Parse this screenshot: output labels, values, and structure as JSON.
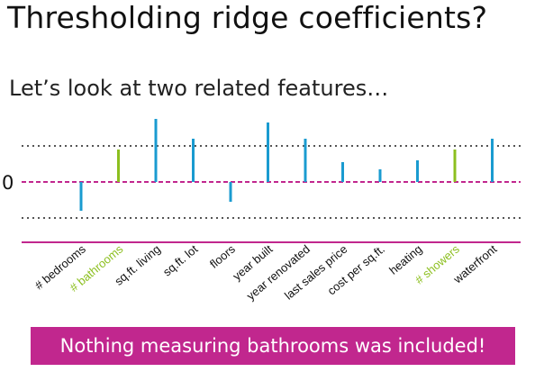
{
  "slide": {
    "title": "Thresholding ridge coefficients?",
    "subtitle": "Let’s look at two related features…",
    "banner": "Nothing measuring bathrooms was included!"
  },
  "colors": {
    "default_bar": "#1a9bd0",
    "highlight_bar": "#8cbf1f",
    "zero_line": "#c1278e",
    "threshold_line": "#555555",
    "default_label": "#111111",
    "highlight_label": "#8cbf1f",
    "banner_bg": "#c1278e"
  },
  "chart_data": {
    "type": "bar",
    "categories": [
      "# bedrooms",
      "# bathrooms",
      "sq.ft. living",
      "sq.ft. lot",
      "floors",
      "year built",
      "year renovated",
      "last sales price",
      "cost per sq.ft.",
      "heating",
      "# showers",
      "waterfront"
    ],
    "values": [
      -0.8,
      0.9,
      1.75,
      1.2,
      -0.55,
      1.65,
      1.2,
      0.55,
      0.35,
      0.6,
      0.9,
      1.2
    ],
    "highlighted": [
      "# bathrooms",
      "# showers"
    ],
    "thresholds": [
      1,
      -1
    ],
    "y_tick_labels": [
      "0"
    ],
    "ylim": [
      -1.8,
      2.0
    ]
  }
}
